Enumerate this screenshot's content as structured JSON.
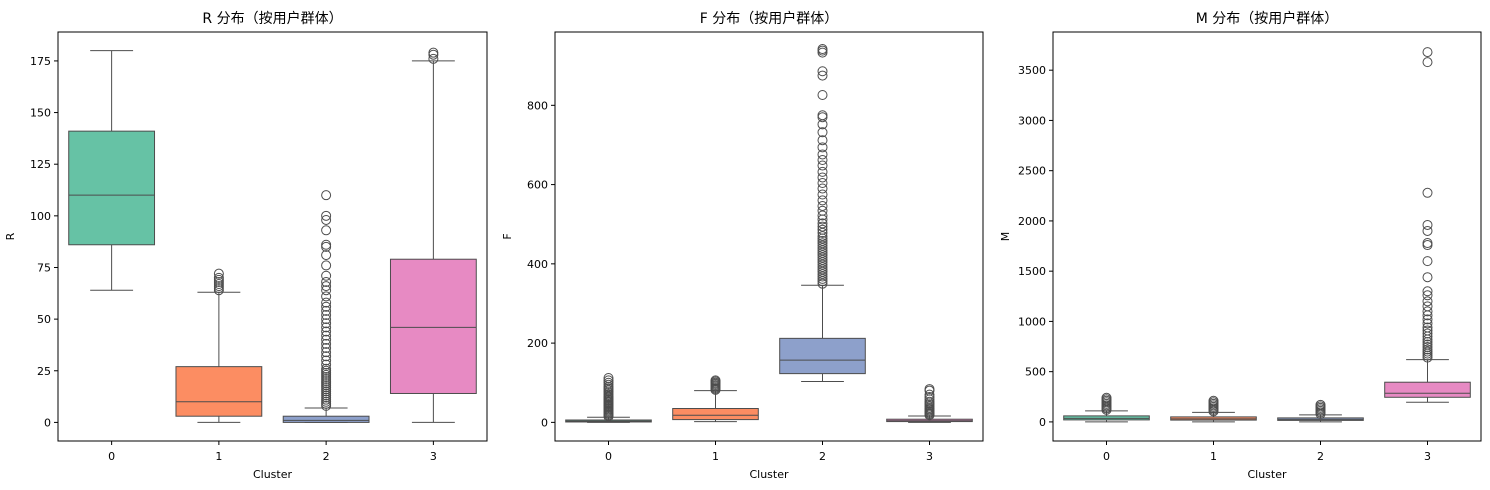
{
  "chart_data": [
    {
      "type": "box",
      "title": "R 分布（按用户群体）",
      "xlabel": "Cluster",
      "ylabel": "R",
      "categories": [
        "0",
        "1",
        "2",
        "3"
      ],
      "ylim": [
        -9,
        189
      ],
      "yticks": [
        0,
        25,
        50,
        75,
        100,
        125,
        150,
        175
      ],
      "boxes": [
        {
          "category": "0",
          "color": "#66c2a5",
          "whisker_low": 64,
          "q1": 86,
          "median": 110,
          "q3": 141,
          "whisker_high": 180,
          "outliers": []
        },
        {
          "category": "1",
          "color": "#fc8d62",
          "whisker_low": 0,
          "q1": 3,
          "median": 10,
          "q3": 27,
          "whisker_high": 63,
          "outliers": [
            64,
            65,
            66,
            67,
            68,
            69,
            70,
            72
          ]
        },
        {
          "category": "2",
          "color": "#8da0cb",
          "whisker_low": 0,
          "q1": 0,
          "median": 1,
          "q3": 3,
          "whisker_high": 7,
          "outliers": [
            8,
            9,
            10,
            11,
            12,
            13,
            14,
            15,
            16,
            17,
            18,
            19,
            20,
            21,
            22,
            23,
            24,
            25,
            26,
            28,
            30,
            32,
            34,
            36,
            38,
            40,
            42,
            44,
            46,
            48,
            50,
            52,
            54,
            56,
            58,
            61,
            64,
            66,
            68,
            71,
            76,
            81,
            85,
            86,
            93,
            98,
            100,
            110
          ]
        },
        {
          "category": "3",
          "color": "#e78ac3",
          "whisker_low": 0,
          "q1": 14,
          "median": 46,
          "q3": 79,
          "whisker_high": 175,
          "outliers": [
            176,
            178,
            179
          ]
        }
      ]
    },
    {
      "type": "box",
      "title": "F 分布（按用户群体）",
      "xlabel": "Cluster",
      "ylabel": "F",
      "categories": [
        "0",
        "1",
        "2",
        "3"
      ],
      "ylim": [
        -47,
        985
      ],
      "yticks": [
        0,
        200,
        400,
        600,
        800
      ],
      "boxes": [
        {
          "category": "0",
          "color": "#66c2a5",
          "whisker_low": 0,
          "q1": 1,
          "median": 3,
          "q3": 6,
          "whisker_high": 13,
          "outliers": [
            15,
            18,
            21,
            24,
            27,
            30,
            33,
            36,
            39,
            42,
            45,
            48,
            51,
            54,
            57,
            60,
            63,
            66,
            70,
            74,
            78,
            82,
            86,
            90,
            95,
            100,
            106,
            112
          ]
        },
        {
          "category": "1",
          "color": "#fc8d62",
          "whisker_low": 2,
          "q1": 7,
          "median": 18,
          "q3": 35,
          "whisker_high": 80,
          "outliers": [
            82,
            85,
            88,
            91,
            94,
            97,
            100,
            103,
            106
          ]
        },
        {
          "category": "2",
          "color": "#8da0cb",
          "whisker_low": 103,
          "q1": 123,
          "median": 157,
          "q3": 212,
          "whisker_high": 346,
          "outliers": [
            350,
            356,
            362,
            368,
            374,
            380,
            386,
            392,
            398,
            404,
            410,
            416,
            422,
            428,
            434,
            440,
            446,
            452,
            458,
            464,
            470,
            478,
            486,
            494,
            502,
            512,
            522,
            534,
            546,
            560,
            575,
            590,
            604,
            618,
            632,
            648,
            662,
            676,
            694,
            712,
            732,
            752,
            770,
            775,
            826,
            875,
            886,
            933,
            938,
            942
          ]
        },
        {
          "category": "3",
          "color": "#e78ac3",
          "whisker_low": 0,
          "q1": 2,
          "median": 4,
          "q3": 8,
          "whisker_high": 16,
          "outliers": [
            18,
            21,
            24,
            27,
            30,
            33,
            36,
            40,
            44,
            48,
            52,
            58,
            64,
            70,
            80,
            84
          ]
        }
      ]
    },
    {
      "type": "box",
      "title": "M 分布（按用户群体）",
      "xlabel": "Cluster",
      "ylabel": "M",
      "categories": [
        "0",
        "1",
        "2",
        "3"
      ],
      "ylim": [
        -190,
        3880
      ],
      "yticks": [
        0,
        500,
        1000,
        1500,
        2000,
        2500,
        3000,
        3500
      ],
      "boxes": [
        {
          "category": "0",
          "color": "#66c2a5",
          "whisker_low": 0,
          "q1": 20,
          "median": 35,
          "q3": 60,
          "whisker_high": 110,
          "outliers": [
            120,
            135,
            150,
            165,
            180,
            195,
            210,
            225,
            240
          ]
        },
        {
          "category": "1",
          "color": "#fc8d62",
          "whisker_low": 0,
          "q1": 18,
          "median": 30,
          "q3": 50,
          "whisker_high": 95,
          "outliers": [
            105,
            120,
            135,
            150,
            165,
            180,
            195,
            210
          ]
        },
        {
          "category": "2",
          "color": "#8da0cb",
          "whisker_low": 0,
          "q1": 15,
          "median": 25,
          "q3": 40,
          "whisker_high": 70,
          "outliers": [
            80,
            95,
            110,
            125,
            140,
            155,
            170
          ]
        },
        {
          "category": "3",
          "color": "#e78ac3",
          "whisker_low": 195,
          "q1": 245,
          "median": 285,
          "q3": 395,
          "whisker_high": 620,
          "outliers": [
            640,
            660,
            680,
            700,
            720,
            745,
            770,
            795,
            820,
            850,
            880,
            910,
            940,
            980,
            1020,
            1060,
            1100,
            1150,
            1200,
            1260,
            1300,
            1440,
            1600,
            1760,
            1780,
            1900,
            1960,
            2280,
            3580,
            3680
          ]
        }
      ]
    }
  ]
}
